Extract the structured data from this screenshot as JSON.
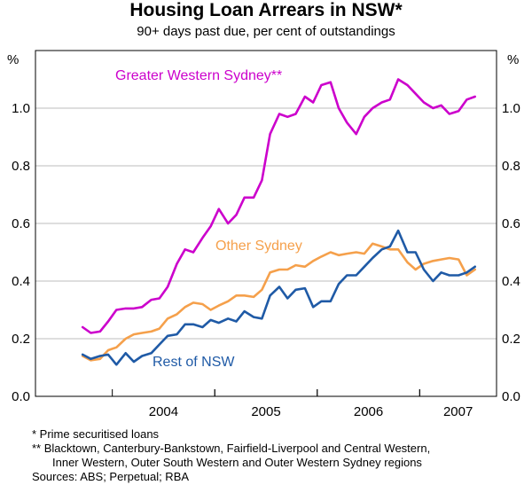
{
  "chart_data": {
    "type": "line",
    "title": "Housing Loan Arrears in NSW*",
    "subtitle": "90+ days past due, per cent of outstandings",
    "y_unit_left": "%",
    "y_unit_right": "%",
    "ylim": [
      0,
      1.2
    ],
    "yticks": [
      "0.0",
      "0.2",
      "0.4",
      "0.6",
      "0.8",
      "1.0"
    ],
    "xlim": [
      2003.25,
      2007.75
    ],
    "x_categories": [
      "2004",
      "2005",
      "2006",
      "2007"
    ],
    "grid": "horizontal",
    "series": [
      {
        "name": "Greater Western Sydney**",
        "color": "#cc00cc",
        "x": [
          2003.71,
          2003.79,
          2003.88,
          2003.96,
          2004.04,
          2004.13,
          2004.21,
          2004.29,
          2004.38,
          2004.46,
          2004.54,
          2004.63,
          2004.71,
          2004.79,
          2004.88,
          2004.96,
          2005.04,
          2005.13,
          2005.21,
          2005.29,
          2005.38,
          2005.46,
          2005.54,
          2005.63,
          2005.71,
          2005.79,
          2005.88,
          2005.96,
          2006.04,
          2006.13,
          2006.21,
          2006.29,
          2006.38,
          2006.46,
          2006.54,
          2006.63,
          2006.71,
          2006.79,
          2006.88,
          2006.96,
          2007.04,
          2007.13,
          2007.21,
          2007.29,
          2007.38,
          2007.46,
          2007.54
        ],
        "values": [
          0.24,
          0.22,
          0.225,
          0.26,
          0.3,
          0.305,
          0.305,
          0.31,
          0.335,
          0.34,
          0.38,
          0.46,
          0.51,
          0.5,
          0.55,
          0.59,
          0.65,
          0.6,
          0.63,
          0.69,
          0.69,
          0.75,
          0.91,
          0.98,
          0.97,
          0.98,
          1.04,
          1.02,
          1.08,
          1.09,
          1.0,
          0.95,
          0.91,
          0.97,
          1.0,
          1.02,
          1.03,
          1.1,
          1.08,
          1.05,
          1.02,
          1.0,
          1.01,
          0.98,
          0.99,
          1.03,
          1.04
        ]
      },
      {
        "name": "Other Sydney",
        "color": "#f5a04b",
        "x": [
          2003.71,
          2003.79,
          2003.88,
          2003.96,
          2004.04,
          2004.13,
          2004.21,
          2004.29,
          2004.38,
          2004.46,
          2004.54,
          2004.63,
          2004.71,
          2004.79,
          2004.88,
          2004.96,
          2005.04,
          2005.13,
          2005.21,
          2005.29,
          2005.38,
          2005.46,
          2005.54,
          2005.63,
          2005.71,
          2005.79,
          2005.88,
          2005.96,
          2006.04,
          2006.13,
          2006.21,
          2006.29,
          2006.38,
          2006.46,
          2006.54,
          2006.63,
          2006.71,
          2006.79,
          2006.88,
          2006.96,
          2007.04,
          2007.13,
          2007.21,
          2007.29,
          2007.38,
          2007.46,
          2007.54
        ],
        "values": [
          0.14,
          0.125,
          0.13,
          0.16,
          0.17,
          0.2,
          0.215,
          0.22,
          0.225,
          0.235,
          0.27,
          0.285,
          0.31,
          0.325,
          0.32,
          0.3,
          0.315,
          0.33,
          0.35,
          0.35,
          0.345,
          0.37,
          0.43,
          0.44,
          0.44,
          0.455,
          0.45,
          0.47,
          0.485,
          0.5,
          0.49,
          0.495,
          0.5,
          0.495,
          0.53,
          0.52,
          0.51,
          0.51,
          0.465,
          0.44,
          0.46,
          0.47,
          0.475,
          0.48,
          0.475,
          0.42,
          0.44
        ]
      },
      {
        "name": "Rest of NSW",
        "color": "#1f5aa6",
        "x": [
          2003.71,
          2003.79,
          2003.88,
          2003.96,
          2004.04,
          2004.13,
          2004.21,
          2004.29,
          2004.38,
          2004.46,
          2004.54,
          2004.63,
          2004.71,
          2004.79,
          2004.88,
          2004.96,
          2005.04,
          2005.13,
          2005.21,
          2005.29,
          2005.38,
          2005.46,
          2005.54,
          2005.63,
          2005.71,
          2005.79,
          2005.88,
          2005.96,
          2006.04,
          2006.13,
          2006.21,
          2006.29,
          2006.38,
          2006.46,
          2006.54,
          2006.63,
          2006.71,
          2006.79,
          2006.88,
          2006.96,
          2007.04,
          2007.13,
          2007.21,
          2007.29,
          2007.38,
          2007.46,
          2007.54
        ],
        "values": [
          0.145,
          0.13,
          0.14,
          0.145,
          0.11,
          0.15,
          0.12,
          0.14,
          0.15,
          0.18,
          0.21,
          0.215,
          0.25,
          0.25,
          0.24,
          0.265,
          0.255,
          0.27,
          0.26,
          0.295,
          0.275,
          0.27,
          0.35,
          0.38,
          0.34,
          0.37,
          0.375,
          0.31,
          0.33,
          0.33,
          0.39,
          0.42,
          0.42,
          0.45,
          0.48,
          0.51,
          0.52,
          0.575,
          0.5,
          0.5,
          0.44,
          0.4,
          0.43,
          0.42,
          0.42,
          0.43,
          0.45
        ]
      }
    ],
    "series_labels": [
      {
        "text": "Greater Western Sydney**",
        "color": "#cc00cc"
      },
      {
        "text": "Other Sydney",
        "color": "#f5a04b"
      },
      {
        "text": "Rest of NSW",
        "color": "#1f5aa6"
      }
    ]
  },
  "notes": {
    "line1": "*   Prime securitised loans",
    "line2": "**  Blacktown, Canterbury-Bankstown, Fairfield-Liverpool and Central Western,",
    "line3": "Inner Western, Outer South Western and Outer Western Sydney regions",
    "line4": "Sources: ABS; Perpetual; RBA"
  }
}
